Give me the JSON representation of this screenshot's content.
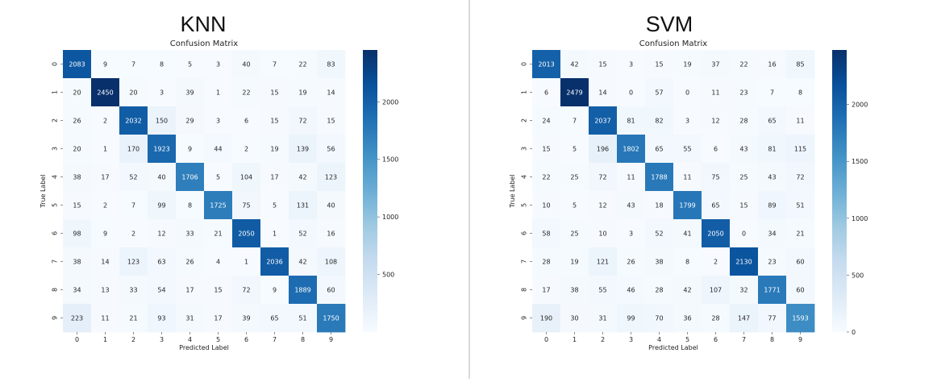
{
  "figure_titles": [
    "KNN",
    "SVM"
  ],
  "chart_data": [
    {
      "type": "heatmap",
      "title": "Confusion Matrix",
      "xlabel": "Predicted Label",
      "ylabel": "True Label",
      "x_categories": [
        "0",
        "1",
        "2",
        "3",
        "4",
        "5",
        "6",
        "7",
        "8",
        "9"
      ],
      "y_categories": [
        "0",
        "1",
        "2",
        "3",
        "4",
        "5",
        "6",
        "7",
        "8",
        "9"
      ],
      "colormap": "Blues",
      "vmax": 2450,
      "colorbar_ticks": [
        500,
        1000,
        1500,
        2000
      ],
      "matrix": [
        [
          2083,
          9,
          7,
          8,
          5,
          3,
          40,
          7,
          22,
          83
        ],
        [
          20,
          2450,
          20,
          3,
          39,
          1,
          22,
          15,
          19,
          14
        ],
        [
          26,
          2,
          2032,
          150,
          29,
          3,
          6,
          15,
          72,
          15
        ],
        [
          20,
          1,
          170,
          1923,
          9,
          44,
          2,
          19,
          139,
          56
        ],
        [
          38,
          17,
          52,
          40,
          1706,
          5,
          104,
          17,
          42,
          123
        ],
        [
          15,
          2,
          7,
          99,
          8,
          1725,
          75,
          5,
          131,
          40
        ],
        [
          98,
          9,
          2,
          12,
          33,
          21,
          2050,
          1,
          52,
          16
        ],
        [
          38,
          14,
          123,
          63,
          26,
          4,
          1,
          2036,
          42,
          108
        ],
        [
          34,
          13,
          33,
          54,
          17,
          15,
          72,
          9,
          1889,
          60
        ],
        [
          223,
          11,
          21,
          93,
          31,
          17,
          39,
          65,
          51,
          1750
        ]
      ]
    },
    {
      "type": "heatmap",
      "title": "Confusion Matrix",
      "xlabel": "Predicted Label",
      "ylabel": "True Label",
      "x_categories": [
        "0",
        "1",
        "2",
        "3",
        "4",
        "5",
        "6",
        "7",
        "8",
        "9"
      ],
      "y_categories": [
        "0",
        "1",
        "2",
        "3",
        "4",
        "5",
        "6",
        "7",
        "8",
        "9"
      ],
      "colormap": "Blues",
      "vmax": 2479,
      "colorbar_ticks": [
        0,
        500,
        1000,
        1500,
        2000
      ],
      "matrix": [
        [
          2013,
          42,
          15,
          3,
          15,
          19,
          37,
          22,
          16,
          85
        ],
        [
          6,
          2479,
          14,
          0,
          57,
          0,
          11,
          23,
          7,
          8
        ],
        [
          24,
          7,
          2037,
          81,
          82,
          3,
          12,
          28,
          65,
          11
        ],
        [
          15,
          5,
          196,
          1802,
          65,
          55,
          6,
          43,
          81,
          115
        ],
        [
          22,
          25,
          72,
          11,
          1788,
          11,
          75,
          25,
          43,
          72
        ],
        [
          10,
          5,
          12,
          43,
          18,
          1799,
          65,
          15,
          89,
          51
        ],
        [
          58,
          25,
          10,
          3,
          52,
          41,
          2050,
          0,
          34,
          21
        ],
        [
          28,
          19,
          121,
          26,
          38,
          8,
          2,
          2130,
          23,
          60
        ],
        [
          17,
          38,
          55,
          46,
          28,
          42,
          107,
          32,
          1771,
          60
        ],
        [
          190,
          30,
          31,
          99,
          70,
          36,
          28,
          147,
          77,
          1593
        ]
      ]
    }
  ]
}
